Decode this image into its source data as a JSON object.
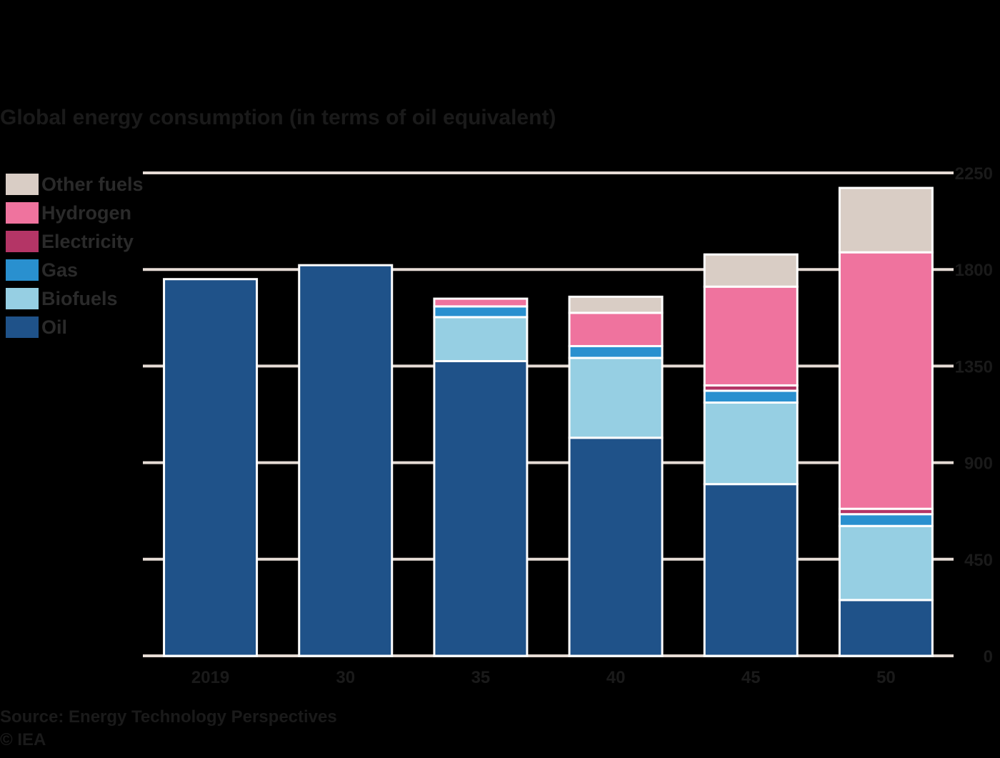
{
  "chart_data": {
    "type": "bar",
    "stacked": true,
    "title": "Global energy consumption (in terms of oil equivalent)",
    "categories": [
      "2019",
      "30",
      "35",
      "40",
      "45",
      "50"
    ],
    "series": [
      {
        "name": "Oil",
        "color": "#1f5289",
        "values": [
          1755,
          1820,
          1373,
          1016,
          800,
          260
        ]
      },
      {
        "name": "Biofuels",
        "color": "#96cfe3",
        "values": [
          0,
          0,
          205,
          372,
          380,
          345
        ]
      },
      {
        "name": "Gas",
        "color": "#2990cf",
        "values": [
          0,
          0,
          50,
          55,
          55,
          55
        ]
      },
      {
        "name": "Electricity",
        "color": "#b43566",
        "values": [
          0,
          0,
          0,
          0,
          25,
          25
        ]
      },
      {
        "name": "Hydrogen",
        "color": "#ef739e",
        "values": [
          0,
          0,
          36,
          155,
          460,
          1195
        ]
      },
      {
        "name": "Other fuels",
        "color": "#d9cdc5",
        "values": [
          0,
          0,
          0,
          75,
          150,
          300
        ]
      }
    ],
    "yaxis_side": "right",
    "ylim": [
      0,
      2250
    ],
    "yticks": [
      0,
      450,
      900,
      1350,
      1800,
      2250
    ],
    "grid": true,
    "legend_position": "top-left",
    "colors": {
      "background": "#000000",
      "gridline": "#e6dcd5",
      "bar_outline": "#ffffff",
      "text": "#1a1a1a"
    }
  },
  "source": "Source: Energy Technology Perspectives",
  "footnote": "© IEA"
}
